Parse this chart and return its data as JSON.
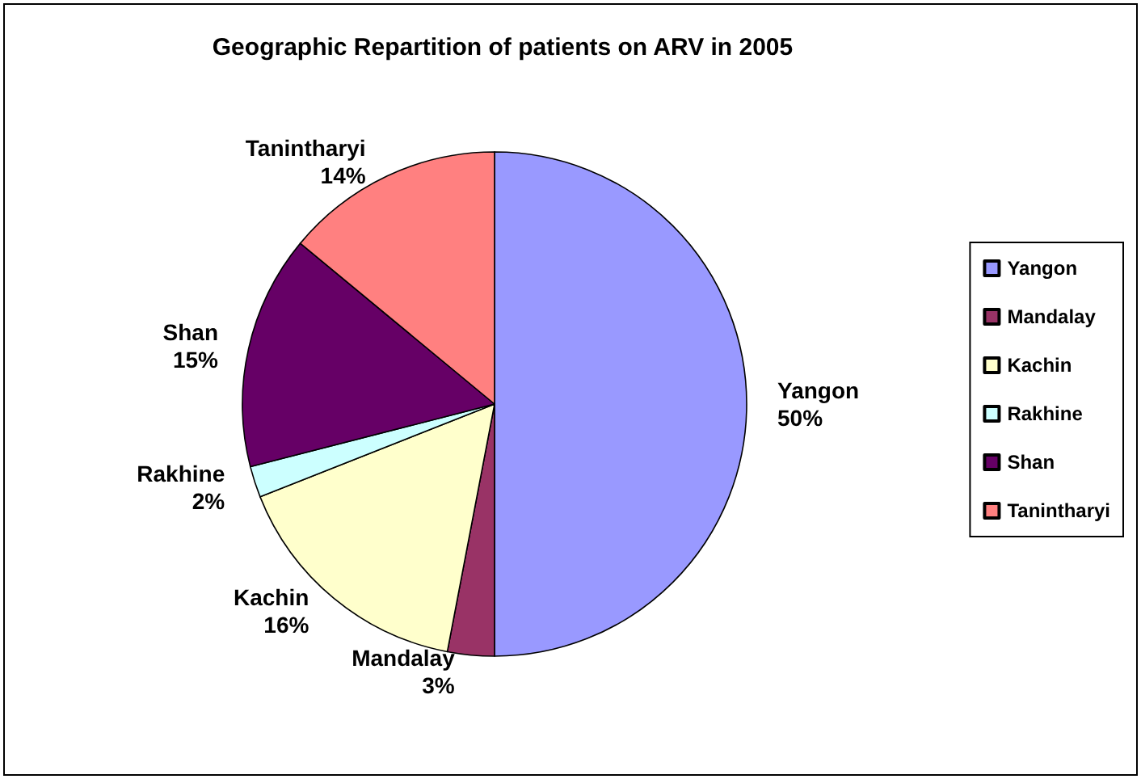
{
  "chart_data": {
    "type": "pie",
    "title": "Geographic Repartition of patients on ARV in 2005",
    "categories": [
      "Yangon",
      "Mandalay",
      "Kachin",
      "Rakhine",
      "Shan",
      "Tanintharyi"
    ],
    "values": [
      50,
      3,
      16,
      2,
      15,
      14
    ],
    "colors": [
      "#9999ff",
      "#993366",
      "#ffffcc",
      "#ccffff",
      "#660066",
      "#ff8080"
    ],
    "value_labels": [
      "50%",
      "3%",
      "16%",
      "2%",
      "15%",
      "14%"
    ],
    "legend": "right"
  }
}
